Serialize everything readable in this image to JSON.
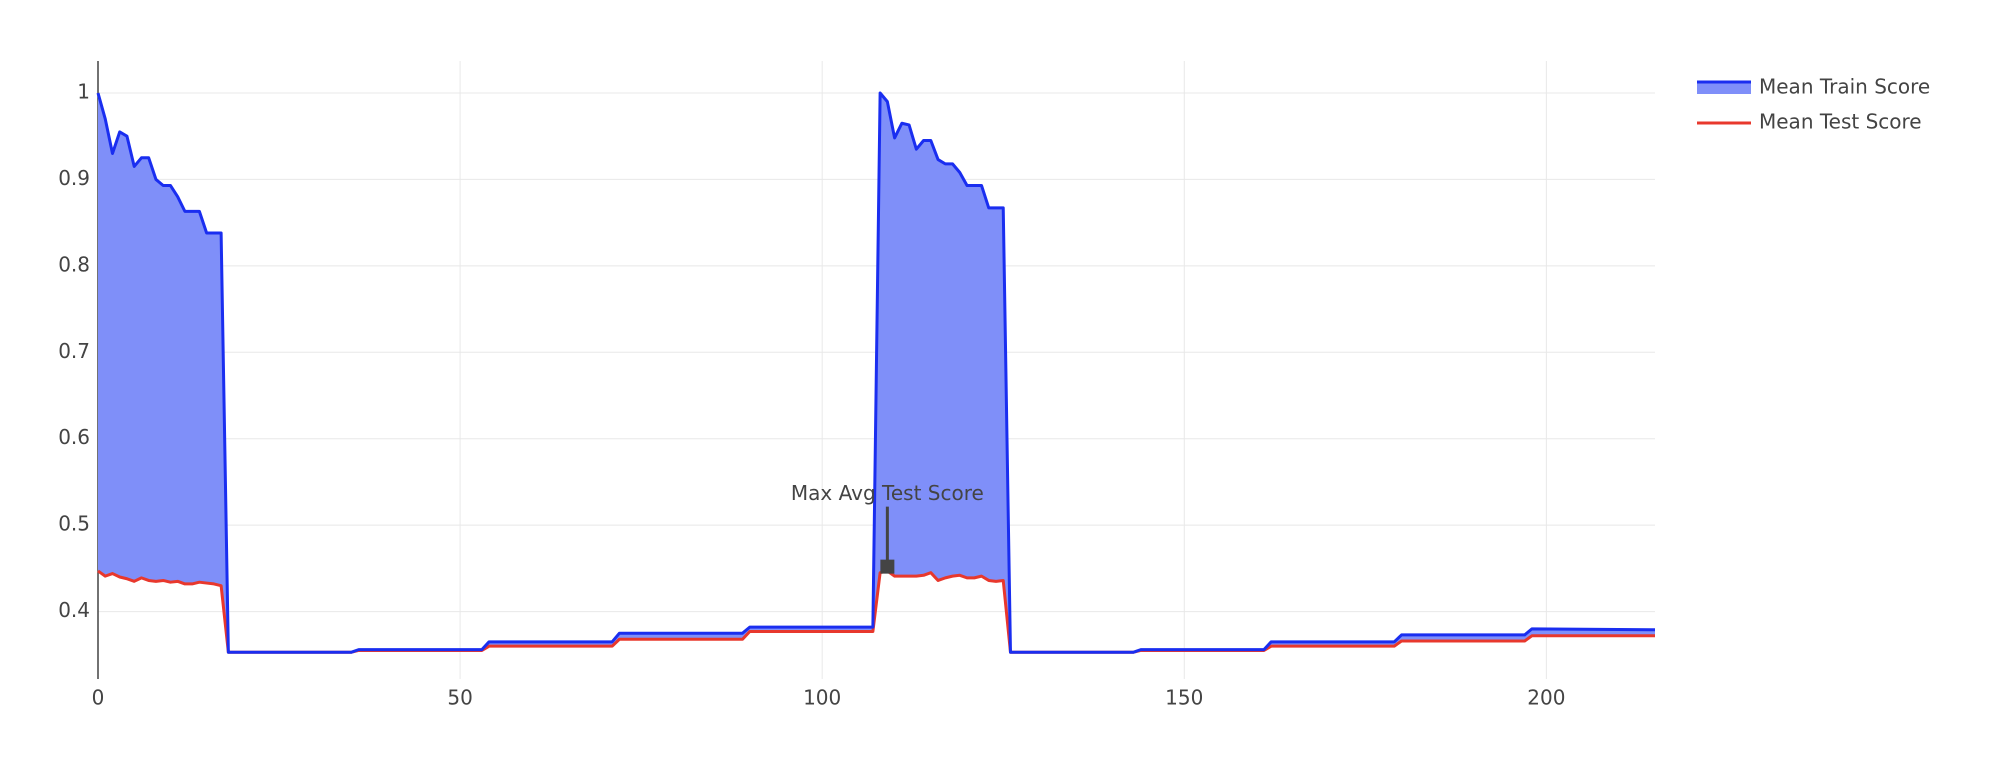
{
  "chart_data": {
    "type": "line",
    "x": [
      0,
      1,
      2,
      3,
      4,
      5,
      6,
      7,
      8,
      9,
      10,
      11,
      12,
      13,
      14,
      15,
      16,
      17,
      18,
      35,
      36,
      53,
      54,
      71,
      72,
      89,
      90,
      107,
      108,
      109,
      110,
      111,
      112,
      113,
      114,
      115,
      116,
      117,
      118,
      119,
      120,
      121,
      122,
      123,
      124,
      125,
      126,
      143,
      144,
      161,
      162,
      179,
      180,
      197,
      198,
      215
    ],
    "series": [
      {
        "name": "Mean Train Score",
        "color": "#1a2ef0",
        "fill_color": "#7f8ff9",
        "values": [
          1.0,
          0.97,
          0.93,
          0.955,
          0.95,
          0.915,
          0.925,
          0.925,
          0.9,
          0.893,
          0.893,
          0.88,
          0.863,
          0.863,
          0.863,
          0.838,
          0.838,
          0.838,
          0.353,
          0.353,
          0.356,
          0.356,
          0.365,
          0.365,
          0.375,
          0.375,
          0.382,
          0.382,
          1.0,
          0.99,
          0.948,
          0.965,
          0.963,
          0.935,
          0.945,
          0.945,
          0.923,
          0.918,
          0.918,
          0.908,
          0.893,
          0.893,
          0.893,
          0.867,
          0.867,
          0.867,
          0.353,
          0.353,
          0.356,
          0.356,
          0.365,
          0.365,
          0.373,
          0.373,
          0.38,
          0.379
        ]
      },
      {
        "name": "Mean Test Score",
        "color": "#e8382d",
        "values": [
          0.447,
          0.441,
          0.444,
          0.44,
          0.438,
          0.435,
          0.439,
          0.436,
          0.435,
          0.436,
          0.434,
          0.435,
          0.432,
          0.432,
          0.434,
          0.433,
          0.432,
          0.43,
          0.353,
          0.353,
          0.355,
          0.355,
          0.36,
          0.36,
          0.368,
          0.368,
          0.377,
          0.377,
          0.445,
          0.447,
          0.441,
          0.441,
          0.441,
          0.441,
          0.442,
          0.445,
          0.436,
          0.439,
          0.441,
          0.442,
          0.439,
          0.439,
          0.441,
          0.436,
          0.435,
          0.436,
          0.353,
          0.353,
          0.355,
          0.355,
          0.36,
          0.36,
          0.366,
          0.366,
          0.372,
          0.372
        ]
      }
    ],
    "annotation": {
      "text": "Max Avg Test Score",
      "x": 109,
      "y": 0.452
    },
    "xlim": [
      0,
      215
    ],
    "ylim": [
      0.322,
      1.037
    ],
    "xticks": [
      0,
      50,
      100,
      150,
      200
    ],
    "yticks": [
      0.4,
      0.5,
      0.6,
      0.7,
      0.8,
      0.9,
      1
    ],
    "grid": true
  }
}
